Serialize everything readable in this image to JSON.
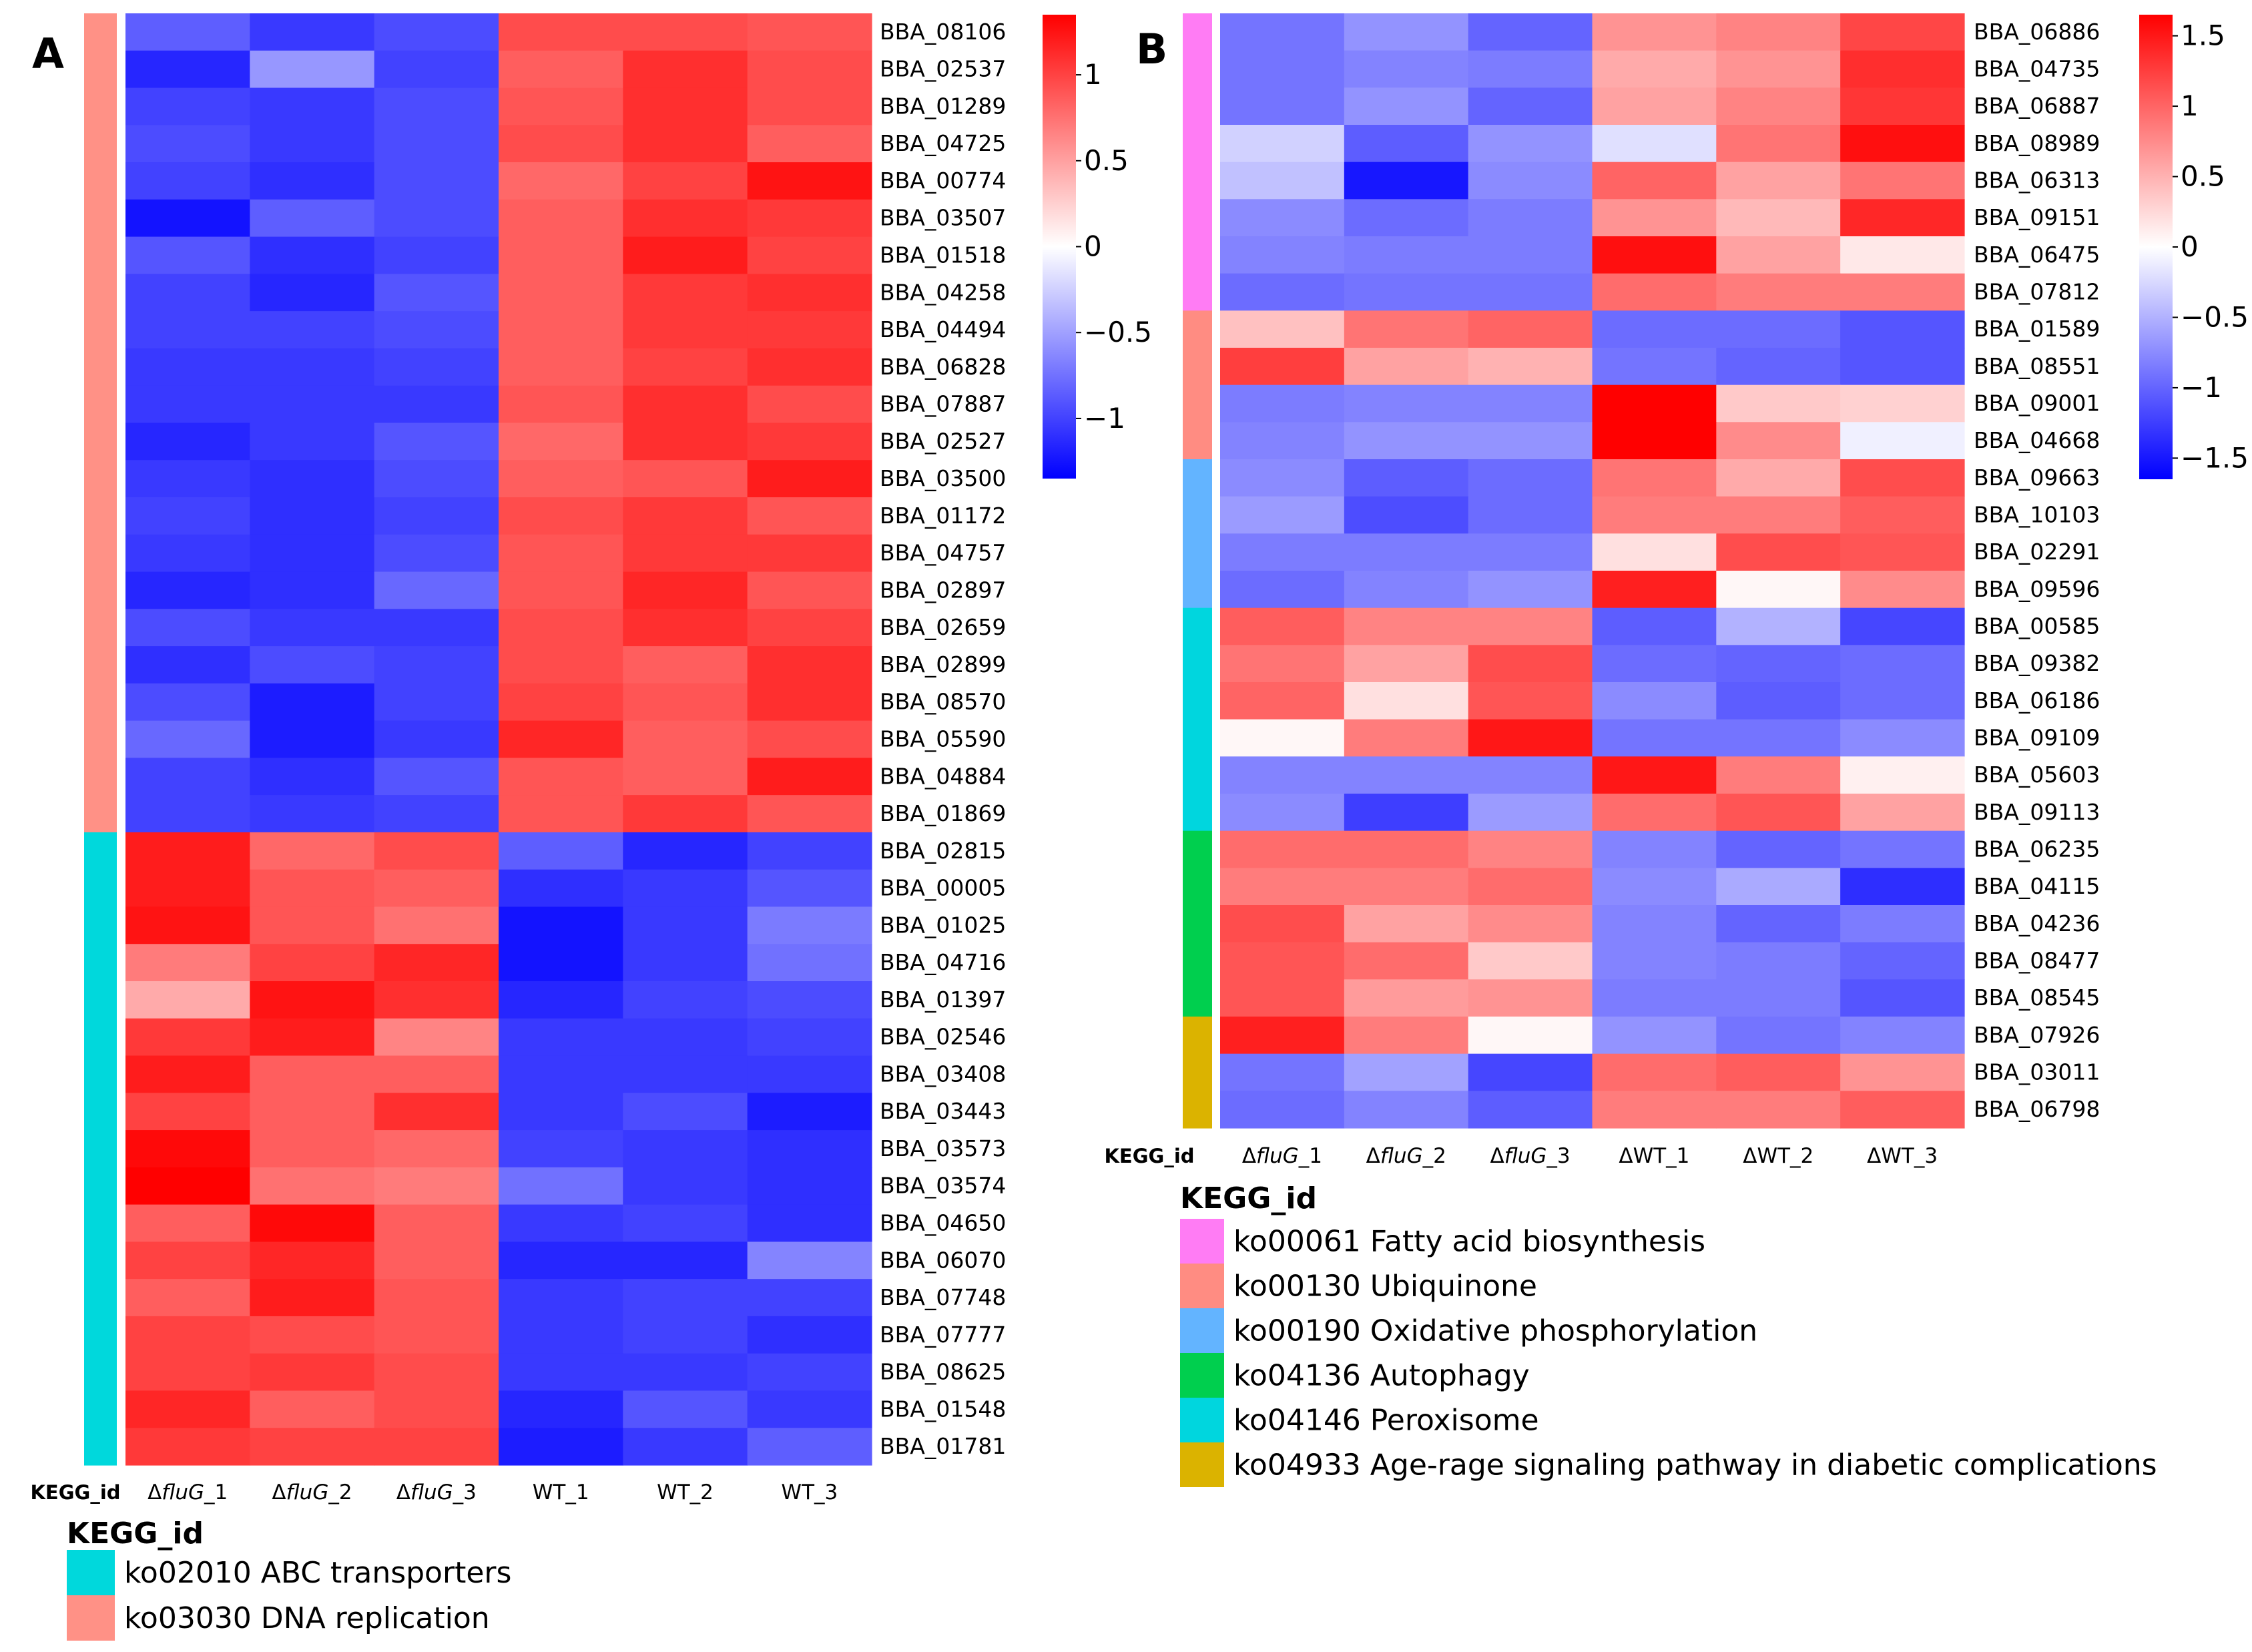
{
  "chart_data": [
    {
      "type": "heatmap",
      "panel_label": "A",
      "columns": [
        "ΔfluG_1",
        "ΔfluG_2",
        "ΔfluG_3",
        "WT_1",
        "WT_2",
        "WT_3"
      ],
      "col_prefix": "Δ",
      "col_italic": "fluG",
      "annotation_label": "KEGG_id",
      "rows": [
        {
          "gene": "BBA_08106",
          "kegg": "ko03030",
          "values": [
            -0.85,
            -1.05,
            -0.95,
            0.95,
            0.95,
            0.9
          ]
        },
        {
          "gene": "BBA_02537",
          "kegg": "ko03030",
          "values": [
            -1.15,
            -0.55,
            -1.0,
            0.85,
            1.1,
            0.95
          ]
        },
        {
          "gene": "BBA_01289",
          "kegg": "ko03030",
          "values": [
            -1.0,
            -1.05,
            -0.95,
            0.9,
            1.1,
            0.95
          ]
        },
        {
          "gene": "BBA_04725",
          "kegg": "ko03030",
          "values": [
            -0.95,
            -1.05,
            -0.95,
            0.95,
            1.1,
            0.85
          ]
        },
        {
          "gene": "BBA_00774",
          "kegg": "ko03030",
          "values": [
            -1.0,
            -1.1,
            -0.95,
            0.8,
            1.0,
            1.25
          ]
        },
        {
          "gene": "BBA_03507",
          "kegg": "ko03030",
          "values": [
            -1.25,
            -0.85,
            -0.95,
            0.85,
            1.1,
            1.05
          ]
        },
        {
          "gene": "BBA_01518",
          "kegg": "ko03030",
          "values": [
            -0.9,
            -1.1,
            -1.0,
            0.85,
            1.2,
            1.0
          ]
        },
        {
          "gene": "BBA_04258",
          "kegg": "ko03030",
          "values": [
            -1.0,
            -1.15,
            -0.9,
            0.85,
            1.05,
            1.1
          ]
        },
        {
          "gene": "BBA_04494",
          "kegg": "ko03030",
          "values": [
            -1.0,
            -1.0,
            -0.95,
            0.85,
            1.05,
            1.05
          ]
        },
        {
          "gene": "BBA_06828",
          "kegg": "ko03030",
          "values": [
            -1.05,
            -1.05,
            -1.0,
            0.85,
            1.0,
            1.1
          ]
        },
        {
          "gene": "BBA_07887",
          "kegg": "ko03030",
          "values": [
            -1.05,
            -1.05,
            -1.05,
            0.9,
            1.1,
            0.95
          ]
        },
        {
          "gene": "BBA_02527",
          "kegg": "ko03030",
          "values": [
            -1.15,
            -1.05,
            -0.9,
            0.8,
            1.1,
            1.05
          ]
        },
        {
          "gene": "BBA_03500",
          "kegg": "ko03030",
          "values": [
            -1.05,
            -1.1,
            -0.95,
            0.85,
            0.9,
            1.2
          ]
        },
        {
          "gene": "BBA_01172",
          "kegg": "ko03030",
          "values": [
            -1.0,
            -1.1,
            -1.0,
            0.95,
            1.05,
            0.9
          ]
        },
        {
          "gene": "BBA_04757",
          "kegg": "ko03030",
          "values": [
            -1.05,
            -1.1,
            -0.95,
            0.9,
            1.05,
            1.05
          ]
        },
        {
          "gene": "BBA_02897",
          "kegg": "ko03030",
          "values": [
            -1.15,
            -1.1,
            -0.8,
            0.9,
            1.15,
            0.9
          ]
        },
        {
          "gene": "BBA_02659",
          "kegg": "ko03030",
          "values": [
            -0.95,
            -1.05,
            -1.05,
            0.95,
            1.1,
            1.0
          ]
        },
        {
          "gene": "BBA_02899",
          "kegg": "ko03030",
          "values": [
            -1.1,
            -0.95,
            -1.0,
            0.95,
            0.85,
            1.1
          ]
        },
        {
          "gene": "BBA_08570",
          "kegg": "ko03030",
          "values": [
            -0.95,
            -1.2,
            -1.0,
            1.0,
            0.9,
            1.1
          ]
        },
        {
          "gene": "BBA_05590",
          "kegg": "ko03030",
          "values": [
            -0.8,
            -1.2,
            -1.05,
            1.15,
            0.85,
            0.95
          ]
        },
        {
          "gene": "BBA_04884",
          "kegg": "ko03030",
          "values": [
            -1.0,
            -1.1,
            -0.9,
            0.9,
            0.85,
            1.2
          ]
        },
        {
          "gene": "BBA_01869",
          "kegg": "ko03030",
          "values": [
            -1.0,
            -1.05,
            -1.0,
            0.9,
            1.05,
            0.9
          ]
        },
        {
          "gene": "BBA_02815",
          "kegg": "ko02010",
          "values": [
            1.2,
            0.8,
            0.95,
            -0.85,
            -1.15,
            -1.0
          ]
        },
        {
          "gene": "BBA_00005",
          "kegg": "ko02010",
          "values": [
            1.2,
            0.9,
            0.85,
            -1.1,
            -1.05,
            -0.9
          ]
        },
        {
          "gene": "BBA_01025",
          "kegg": "ko02010",
          "values": [
            1.25,
            0.9,
            0.75,
            -1.25,
            -1.05,
            -0.7
          ]
        },
        {
          "gene": "BBA_04716",
          "kegg": "ko02010",
          "values": [
            0.7,
            1.0,
            1.15,
            -1.25,
            -1.05,
            -0.75
          ]
        },
        {
          "gene": "BBA_01397",
          "kegg": "ko02010",
          "values": [
            0.45,
            1.25,
            1.1,
            -1.15,
            -1.0,
            -0.95
          ]
        },
        {
          "gene": "BBA_02546",
          "kegg": "ko02010",
          "values": [
            1.05,
            1.2,
            0.65,
            -1.05,
            -1.05,
            -1.0
          ]
        },
        {
          "gene": "BBA_03408",
          "kegg": "ko02010",
          "values": [
            1.2,
            0.85,
            0.85,
            -1.05,
            -1.05,
            -1.05
          ]
        },
        {
          "gene": "BBA_03443",
          "kegg": "ko02010",
          "values": [
            1.0,
            0.85,
            1.1,
            -1.05,
            -0.95,
            -1.2
          ]
        },
        {
          "gene": "BBA_03573",
          "kegg": "ko02010",
          "values": [
            1.3,
            0.85,
            0.8,
            -1.0,
            -1.05,
            -1.1
          ]
        },
        {
          "gene": "BBA_03574",
          "kegg": "ko02010",
          "values": [
            1.35,
            0.75,
            0.7,
            -0.75,
            -1.05,
            -1.1
          ]
        },
        {
          "gene": "BBA_04650",
          "kegg": "ko02010",
          "values": [
            0.85,
            1.3,
            0.85,
            -1.05,
            -1.0,
            -1.1
          ]
        },
        {
          "gene": "BBA_06070",
          "kegg": "ko02010",
          "values": [
            1.0,
            1.15,
            0.85,
            -1.15,
            -1.15,
            -0.65
          ]
        },
        {
          "gene": "BBA_07748",
          "kegg": "ko02010",
          "values": [
            0.85,
            1.2,
            0.9,
            -1.05,
            -1.0,
            -1.0
          ]
        },
        {
          "gene": "BBA_07777",
          "kegg": "ko02010",
          "values": [
            1.0,
            0.95,
            0.9,
            -1.05,
            -1.0,
            -1.1
          ]
        },
        {
          "gene": "BBA_08625",
          "kegg": "ko02010",
          "values": [
            1.0,
            1.05,
            0.95,
            -1.05,
            -1.05,
            -1.0
          ]
        },
        {
          "gene": "BBA_01548",
          "kegg": "ko02010",
          "values": [
            1.15,
            0.85,
            0.95,
            -1.15,
            -0.9,
            -1.05
          ]
        },
        {
          "gene": "BBA_01781",
          "kegg": "ko02010",
          "values": [
            1.05,
            1.0,
            1.0,
            -1.2,
            -1.05,
            -0.85
          ]
        }
      ],
      "colorbar": {
        "min": -1.35,
        "max": 1.35,
        "ticks": [
          1,
          0.5,
          0,
          -0.5,
          -1
        ],
        "tick_labels": [
          "1",
          "0.5",
          "0",
          "−0.5",
          "−1"
        ]
      },
      "legend": {
        "title": "KEGG_id",
        "items": [
          {
            "id": "ko02010",
            "label": "ko02010 ABC transporters",
            "color": "#00D8DC"
          },
          {
            "id": "ko03030",
            "label": "ko03030 DNA replication",
            "color": "#FF9186"
          }
        ]
      },
      "colors": {
        "low": "#0000FF",
        "mid": "#FFFFFF",
        "high": "#FF0000"
      }
    },
    {
      "type": "heatmap",
      "panel_label": "B",
      "columns": [
        "ΔfluG_1",
        "ΔfluG_2",
        "ΔfluG_3",
        "ΔWT_1",
        "ΔWT_2",
        "ΔWT_3"
      ],
      "col_prefix": "Δ",
      "col_italic": "fluG",
      "annotation_label": "KEGG_id",
      "rows": [
        {
          "gene": "BBA_06886",
          "kegg": "ko00061",
          "values": [
            -0.9,
            -0.7,
            -1.0,
            0.7,
            0.8,
            1.2
          ]
        },
        {
          "gene": "BBA_04735",
          "kegg": "ko00061",
          "values": [
            -0.9,
            -0.8,
            -0.85,
            0.55,
            0.7,
            1.35
          ]
        },
        {
          "gene": "BBA_06887",
          "kegg": "ko00061",
          "values": [
            -0.9,
            -0.7,
            -1.0,
            0.6,
            0.8,
            1.3
          ]
        },
        {
          "gene": "BBA_08989",
          "kegg": "ko00061",
          "values": [
            -0.3,
            -1.05,
            -0.7,
            -0.2,
            0.9,
            1.55
          ]
        },
        {
          "gene": "BBA_06313",
          "kegg": "ko00061",
          "values": [
            -0.4,
            -1.5,
            -0.75,
            1.0,
            0.6,
            0.9
          ]
        },
        {
          "gene": "BBA_09151",
          "kegg": "ko00061",
          "values": [
            -0.75,
            -0.95,
            -0.85,
            0.7,
            0.45,
            1.4
          ]
        },
        {
          "gene": "BBA_06475",
          "kegg": "ko00061",
          "values": [
            -0.8,
            -0.85,
            -0.85,
            1.55,
            0.6,
            0.15
          ]
        },
        {
          "gene": "BBA_07812",
          "kegg": "ko00061",
          "values": [
            -0.95,
            -0.9,
            -0.9,
            0.95,
            0.85,
            0.85
          ]
        },
        {
          "gene": "BBA_01589",
          "kegg": "ko00130",
          "values": [
            0.4,
            0.9,
            1.0,
            -0.95,
            -0.95,
            -1.1
          ]
        },
        {
          "gene": "BBA_08551",
          "kegg": "ko00130",
          "values": [
            1.25,
            0.6,
            0.5,
            -0.9,
            -1.0,
            -1.1
          ]
        },
        {
          "gene": "BBA_09001",
          "kegg": "ko00130",
          "values": [
            -0.85,
            -0.8,
            -0.8,
            1.7,
            0.35,
            0.3
          ]
        },
        {
          "gene": "BBA_04668",
          "kegg": "ko00130",
          "values": [
            -0.8,
            -0.7,
            -0.7,
            1.65,
            0.75,
            -0.1
          ]
        },
        {
          "gene": "BBA_09663",
          "kegg": "ko00190",
          "values": [
            -0.75,
            -1.05,
            -0.95,
            0.9,
            0.55,
            1.15
          ]
        },
        {
          "gene": "BBA_10103",
          "kegg": "ko00190",
          "values": [
            -0.65,
            -1.15,
            -0.95,
            0.85,
            0.85,
            1.05
          ]
        },
        {
          "gene": "BBA_02291",
          "kegg": "ko00190",
          "values": [
            -0.85,
            -0.85,
            -0.85,
            0.2,
            1.15,
            1.1
          ]
        },
        {
          "gene": "BBA_09596",
          "kegg": "ko00190",
          "values": [
            -0.95,
            -0.8,
            -0.7,
            1.45,
            0.05,
            0.75
          ]
        },
        {
          "gene": "BBA_00585",
          "kegg": "ko04146",
          "values": [
            1.05,
            0.8,
            0.8,
            -1.05,
            -0.5,
            -1.2
          ]
        },
        {
          "gene": "BBA_09382",
          "kegg": "ko04146",
          "values": [
            0.9,
            0.6,
            1.15,
            -0.95,
            -1.0,
            -0.95
          ]
        },
        {
          "gene": "BBA_06186",
          "kegg": "ko04146",
          "values": [
            1.0,
            0.2,
            1.1,
            -0.75,
            -1.05,
            -0.95
          ]
        },
        {
          "gene": "BBA_09109",
          "kegg": "ko04146",
          "values": [
            0.05,
            0.85,
            1.5,
            -0.9,
            -0.9,
            -0.75
          ]
        },
        {
          "gene": "BBA_05603",
          "kegg": "ko04146",
          "values": [
            -0.8,
            -0.8,
            -0.8,
            1.5,
            0.85,
            0.1
          ]
        },
        {
          "gene": "BBA_09113",
          "kegg": "ko04146",
          "values": [
            -0.75,
            -1.25,
            -0.65,
            0.95,
            1.1,
            0.6
          ]
        },
        {
          "gene": "BBA_06235",
          "kegg": "ko04136",
          "values": [
            0.95,
            0.95,
            0.8,
            -0.8,
            -1.0,
            -0.9
          ]
        },
        {
          "gene": "BBA_04115",
          "kegg": "ko04136",
          "values": [
            0.85,
            0.85,
            0.95,
            -0.75,
            -0.55,
            -1.35
          ]
        },
        {
          "gene": "BBA_04236",
          "kegg": "ko04136",
          "values": [
            1.15,
            0.6,
            0.75,
            -0.8,
            -1.0,
            -0.85
          ]
        },
        {
          "gene": "BBA_08477",
          "kegg": "ko04136",
          "values": [
            1.1,
            0.95,
            0.35,
            -0.8,
            -0.85,
            -1.0
          ]
        },
        {
          "gene": "BBA_08545",
          "kegg": "ko04136",
          "values": [
            1.1,
            0.65,
            0.7,
            -0.85,
            -0.85,
            -1.1
          ]
        },
        {
          "gene": "BBA_07926",
          "kegg": "ko04933",
          "values": [
            1.45,
            0.85,
            0.05,
            -0.7,
            -0.9,
            -0.8
          ]
        },
        {
          "gene": "BBA_03011",
          "kegg": "ko04933",
          "values": [
            -0.9,
            -0.6,
            -1.2,
            0.95,
            1.05,
            0.7
          ]
        },
        {
          "gene": "BBA_06798",
          "kegg": "ko04933",
          "values": [
            -0.95,
            -0.8,
            -1.05,
            0.85,
            0.85,
            1.05
          ]
        }
      ],
      "colorbar": {
        "min": -1.65,
        "max": 1.65,
        "ticks": [
          1.5,
          1,
          0.5,
          0,
          -0.5,
          -1,
          -1.5
        ],
        "tick_labels": [
          "1.5",
          "1",
          "0.5",
          "0",
          "−0.5",
          "−1",
          "−1.5"
        ]
      },
      "legend": {
        "title": "KEGG_id",
        "items": [
          {
            "id": "ko00061",
            "label": "ko00061 Fatty acid biosynthesis",
            "color": "#FF7CF4"
          },
          {
            "id": "ko00130",
            "label": "ko00130 Ubiquinone",
            "color": "#FF8C82"
          },
          {
            "id": "ko00190",
            "label": "ko00190 Oxidative phosphorylation",
            "color": "#63B4FF"
          },
          {
            "id": "ko04136",
            "label": "ko04136 Autophagy",
            "color": "#00CF4E"
          },
          {
            "id": "ko04146",
            "label": "ko04146 Peroxisome",
            "color": "#00D6DE"
          },
          {
            "id": "ko04933",
            "label": "ko04933 Age-rage signaling pathway in diabetic complications",
            "color": "#DBB300"
          }
        ]
      },
      "colors": {
        "low": "#0000FF",
        "mid": "#FFFFFF",
        "high": "#FF0000"
      }
    }
  ]
}
